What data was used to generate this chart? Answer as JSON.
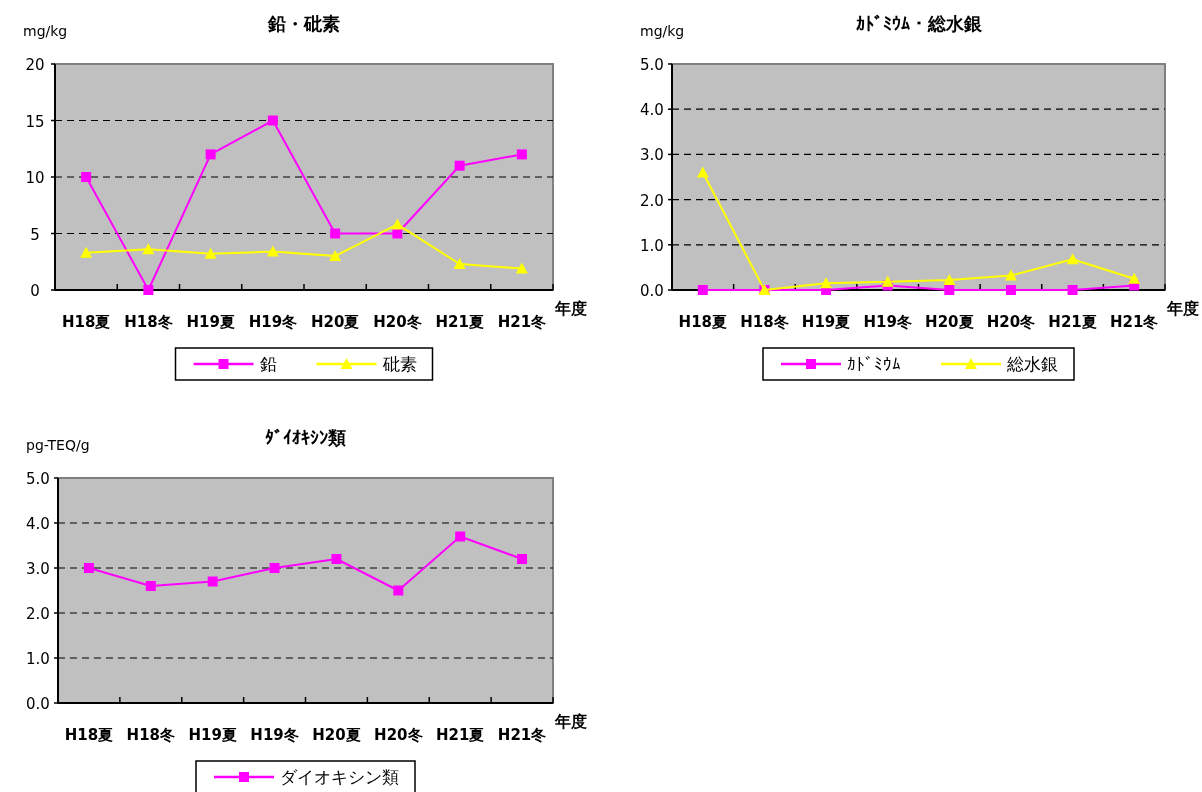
{
  "chart_data": [
    {
      "type": "line",
      "title": "鉛・砒素",
      "ylabel": "mg/kg",
      "xlabel": "年度",
      "categories": [
        "H18夏",
        "H18冬",
        "H19夏",
        "H19冬",
        "H20夏",
        "H20冬",
        "H21夏",
        "H21冬"
      ],
      "series": [
        {
          "name": "鉛",
          "color": "#ff00ff",
          "marker": "square",
          "values": [
            10,
            0,
            12,
            15,
            5,
            5,
            11,
            12
          ]
        },
        {
          "name": "砒素",
          "color": "#ffff00",
          "marker": "triangle",
          "values": [
            3.3,
            3.6,
            3.2,
            3.4,
            3.0,
            5.8,
            2.3,
            1.9
          ]
        }
      ],
      "ylim": [
        0,
        20
      ],
      "yticks": [
        0,
        5,
        10,
        15,
        20
      ],
      "grid": "y",
      "legend": "bottom"
    },
    {
      "type": "line",
      "title": "ｶﾄﾞﾐｳﾑ・総水銀",
      "ylabel": "mg/kg",
      "xlabel": "年度",
      "categories": [
        "H18夏",
        "H18冬",
        "H19夏",
        "H19冬",
        "H20夏",
        "H20冬",
        "H21夏",
        "H21冬"
      ],
      "series": [
        {
          "name": "ｶﾄﾞﾐｳﾑ",
          "color": "#ff00ff",
          "marker": "square",
          "values": [
            0,
            0,
            0,
            0.1,
            0,
            0,
            0,
            0.1
          ]
        },
        {
          "name": "総水銀",
          "color": "#ffff00",
          "marker": "triangle",
          "values": [
            2.6,
            0,
            0.15,
            0.18,
            0.22,
            0.32,
            0.68,
            0.25
          ]
        }
      ],
      "ylim": [
        0,
        5
      ],
      "yticks": [
        {
          "value": 0,
          "label": "0.0"
        },
        {
          "value": 1,
          "label": "1.0"
        },
        {
          "value": 2,
          "label": "2.0"
        },
        {
          "value": 3,
          "label": "3.0"
        },
        {
          "value": 4,
          "label": "4.0"
        },
        {
          "value": 5,
          "label": "5.0"
        }
      ],
      "grid": "y",
      "legend": "bottom"
    },
    {
      "type": "line",
      "title": "ﾀﾞｲｵｷｼﾝ類",
      "ylabel": "pg-TEQ/g",
      "xlabel": "年度",
      "categories": [
        "H18夏",
        "H18冬",
        "H19夏",
        "H19冬",
        "H20夏",
        "H20冬",
        "H21夏",
        "H21冬"
      ],
      "series": [
        {
          "name": "ダイオキシン類",
          "color": "#ff00ff",
          "marker": "square",
          "values": [
            3.0,
            2.6,
            2.7,
            3.0,
            3.2,
            2.5,
            3.7,
            3.2
          ]
        }
      ],
      "ylim": [
        0,
        5
      ],
      "yticks": [
        {
          "value": 0,
          "label": "0.0"
        },
        {
          "value": 1,
          "label": "1.0"
        },
        {
          "value": 2,
          "label": "2.0"
        },
        {
          "value": 3,
          "label": "3.0"
        },
        {
          "value": 4,
          "label": "4.0"
        },
        {
          "value": 5,
          "label": "5.0"
        }
      ],
      "grid": "y",
      "legend": "bottom"
    }
  ]
}
